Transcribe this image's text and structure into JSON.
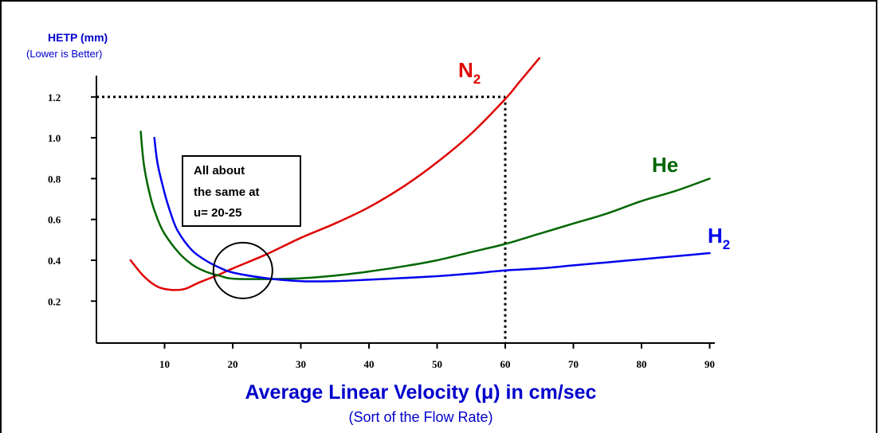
{
  "chart_data": {
    "type": "line",
    "ylabel": "HETP (mm)",
    "ylabel_note": "(Lower is Better)",
    "xlabel": "Average Linear Velocity (μ) in cm/sec",
    "xlabel_note": "(Sort of the Flow Rate)",
    "xlim": [
      0,
      90
    ],
    "ylim": [
      0,
      1.32
    ],
    "x_ticks": [
      "10",
      "20",
      "30",
      "40",
      "50",
      "60",
      "70",
      "80",
      "90"
    ],
    "y_ticks": [
      "0.2",
      "0.4",
      "0.6",
      "0.8",
      "1.0",
      "1.2"
    ],
    "grid": false,
    "series": [
      {
        "name": "N2",
        "label_main": "N",
        "label_sub": "2",
        "color": "#e00000",
        "points": [
          [
            5,
            0.4
          ],
          [
            7,
            0.32
          ],
          [
            9,
            0.27
          ],
          [
            11,
            0.255
          ],
          [
            13,
            0.26
          ],
          [
            15,
            0.29
          ],
          [
            18,
            0.33
          ],
          [
            20,
            0.36
          ],
          [
            25,
            0.43
          ],
          [
            30,
            0.51
          ],
          [
            35,
            0.58
          ],
          [
            40,
            0.66
          ],
          [
            45,
            0.76
          ],
          [
            50,
            0.88
          ],
          [
            55,
            1.02
          ],
          [
            60,
            1.19
          ],
          [
            62,
            1.27
          ],
          [
            65,
            1.39
          ]
        ]
      },
      {
        "name": "He",
        "label_main": "He",
        "label_sub": "",
        "color": "#006600",
        "points": [
          [
            6.5,
            1.03
          ],
          [
            7,
            0.86
          ],
          [
            8,
            0.7
          ],
          [
            9,
            0.6
          ],
          [
            10,
            0.53
          ],
          [
            12,
            0.44
          ],
          [
            14,
            0.38
          ],
          [
            16,
            0.345
          ],
          [
            18,
            0.325
          ],
          [
            20,
            0.31
          ],
          [
            25,
            0.308
          ],
          [
            30,
            0.312
          ],
          [
            35,
            0.325
          ],
          [
            40,
            0.345
          ],
          [
            45,
            0.37
          ],
          [
            50,
            0.4
          ],
          [
            55,
            0.44
          ],
          [
            60,
            0.48
          ],
          [
            65,
            0.53
          ],
          [
            70,
            0.58
          ],
          [
            75,
            0.63
          ],
          [
            80,
            0.69
          ],
          [
            85,
            0.74
          ],
          [
            90,
            0.8
          ]
        ]
      },
      {
        "name": "H2",
        "label_main": "H",
        "label_sub": "2",
        "color": "#0000ee",
        "points": [
          [
            8.5,
            1.0
          ],
          [
            9,
            0.87
          ],
          [
            10,
            0.73
          ],
          [
            11,
            0.62
          ],
          [
            12,
            0.54
          ],
          [
            14,
            0.45
          ],
          [
            16,
            0.4
          ],
          [
            18,
            0.365
          ],
          [
            20,
            0.34
          ],
          [
            25,
            0.312
          ],
          [
            30,
            0.298
          ],
          [
            35,
            0.298
          ],
          [
            40,
            0.305
          ],
          [
            45,
            0.313
          ],
          [
            50,
            0.322
          ],
          [
            55,
            0.335
          ],
          [
            60,
            0.35
          ],
          [
            65,
            0.36
          ],
          [
            70,
            0.375
          ],
          [
            75,
            0.39
          ],
          [
            80,
            0.405
          ],
          [
            85,
            0.42
          ],
          [
            90,
            0.435
          ]
        ]
      }
    ],
    "annotations": {
      "box_lines": [
        "All about",
        "the same at",
        "u= 20-25"
      ],
      "ellipse_center": [
        21.5,
        0.35
      ],
      "reference_point": [
        60,
        1.2
      ]
    }
  }
}
